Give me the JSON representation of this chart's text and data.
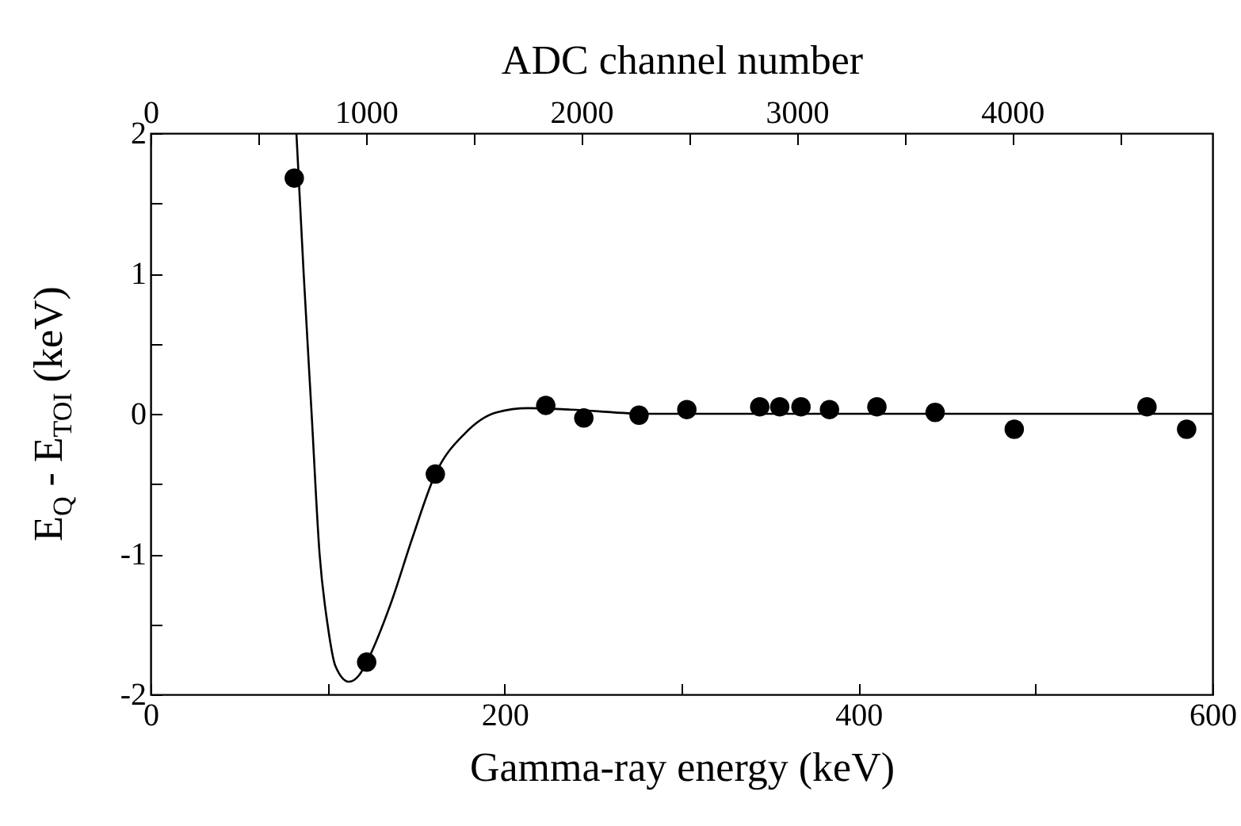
{
  "chart_data": {
    "type": "scatter",
    "xlabel": "Gamma-ray energy (keV)",
    "ylabel": "E$_{Q}$ - E$_{TOI}$ (keV)",
    "x2label": "ADC channel number",
    "xlim": [
      0,
      600
    ],
    "xticks": [
      0,
      {
        "value": 100,
        "label": null
      },
      200,
      {
        "value": 300,
        "label": null
      },
      400,
      {
        "value": 500,
        "label": null
      },
      600
    ],
    "ylim": [
      -2,
      2
    ],
    "yticks": [
      -2,
      {
        "value": -1.5,
        "label": null
      },
      -1,
      {
        "value": -0.5,
        "label": null
      },
      0,
      {
        "value": 0.5,
        "label": null
      },
      1,
      {
        "value": 1.5,
        "label": null
      },
      2
    ],
    "x2lim": [
      0,
      4930
    ],
    "x2ticks": [
      0,
      {
        "value": 500,
        "label": null
      },
      1000,
      {
        "value": 1500,
        "label": null
      },
      2000,
      {
        "value": 2500,
        "label": null
      },
      3000,
      {
        "value": 3500,
        "label": null
      },
      4000,
      {
        "value": 4500,
        "label": null
      }
    ],
    "grid": false,
    "series": [
      {
        "marker": "circle",
        "color": "#000000",
        "x": [
          81.2,
          122.1,
          160.9,
          223.3,
          244.8,
          276,
          303,
          344.2,
          355.5,
          367.5,
          383.6,
          410.4,
          443.3,
          488,
          563,
          585.4
        ],
        "values": [
          1.68,
          -1.77,
          -0.43,
          0.06,
          -0.03,
          -0.01,
          0.03,
          0.05,
          0.05,
          0.05,
          0.03,
          0.05,
          0.01,
          -0.11,
          0.05,
          -0.11
        ]
      },
      {
        "type": "line",
        "color": "#000000",
        "line_style": "solid",
        "x": [
          82.4,
          86.5,
          91,
          95.5,
          100,
          104.5,
          112,
          118,
          122.1,
          135.8,
          147.8,
          160.9,
          177.6,
          195.5,
          213.4,
          237.3,
          280,
          600
        ],
        "values": [
          2,
          1,
          0,
          -1,
          -1.5,
          -1.8,
          -1.91,
          -1.86,
          -1.77,
          -1.35,
          -0.89,
          -0.43,
          -0.14,
          0.01,
          0.04,
          0.03,
          0,
          0
        ]
      }
    ]
  }
}
